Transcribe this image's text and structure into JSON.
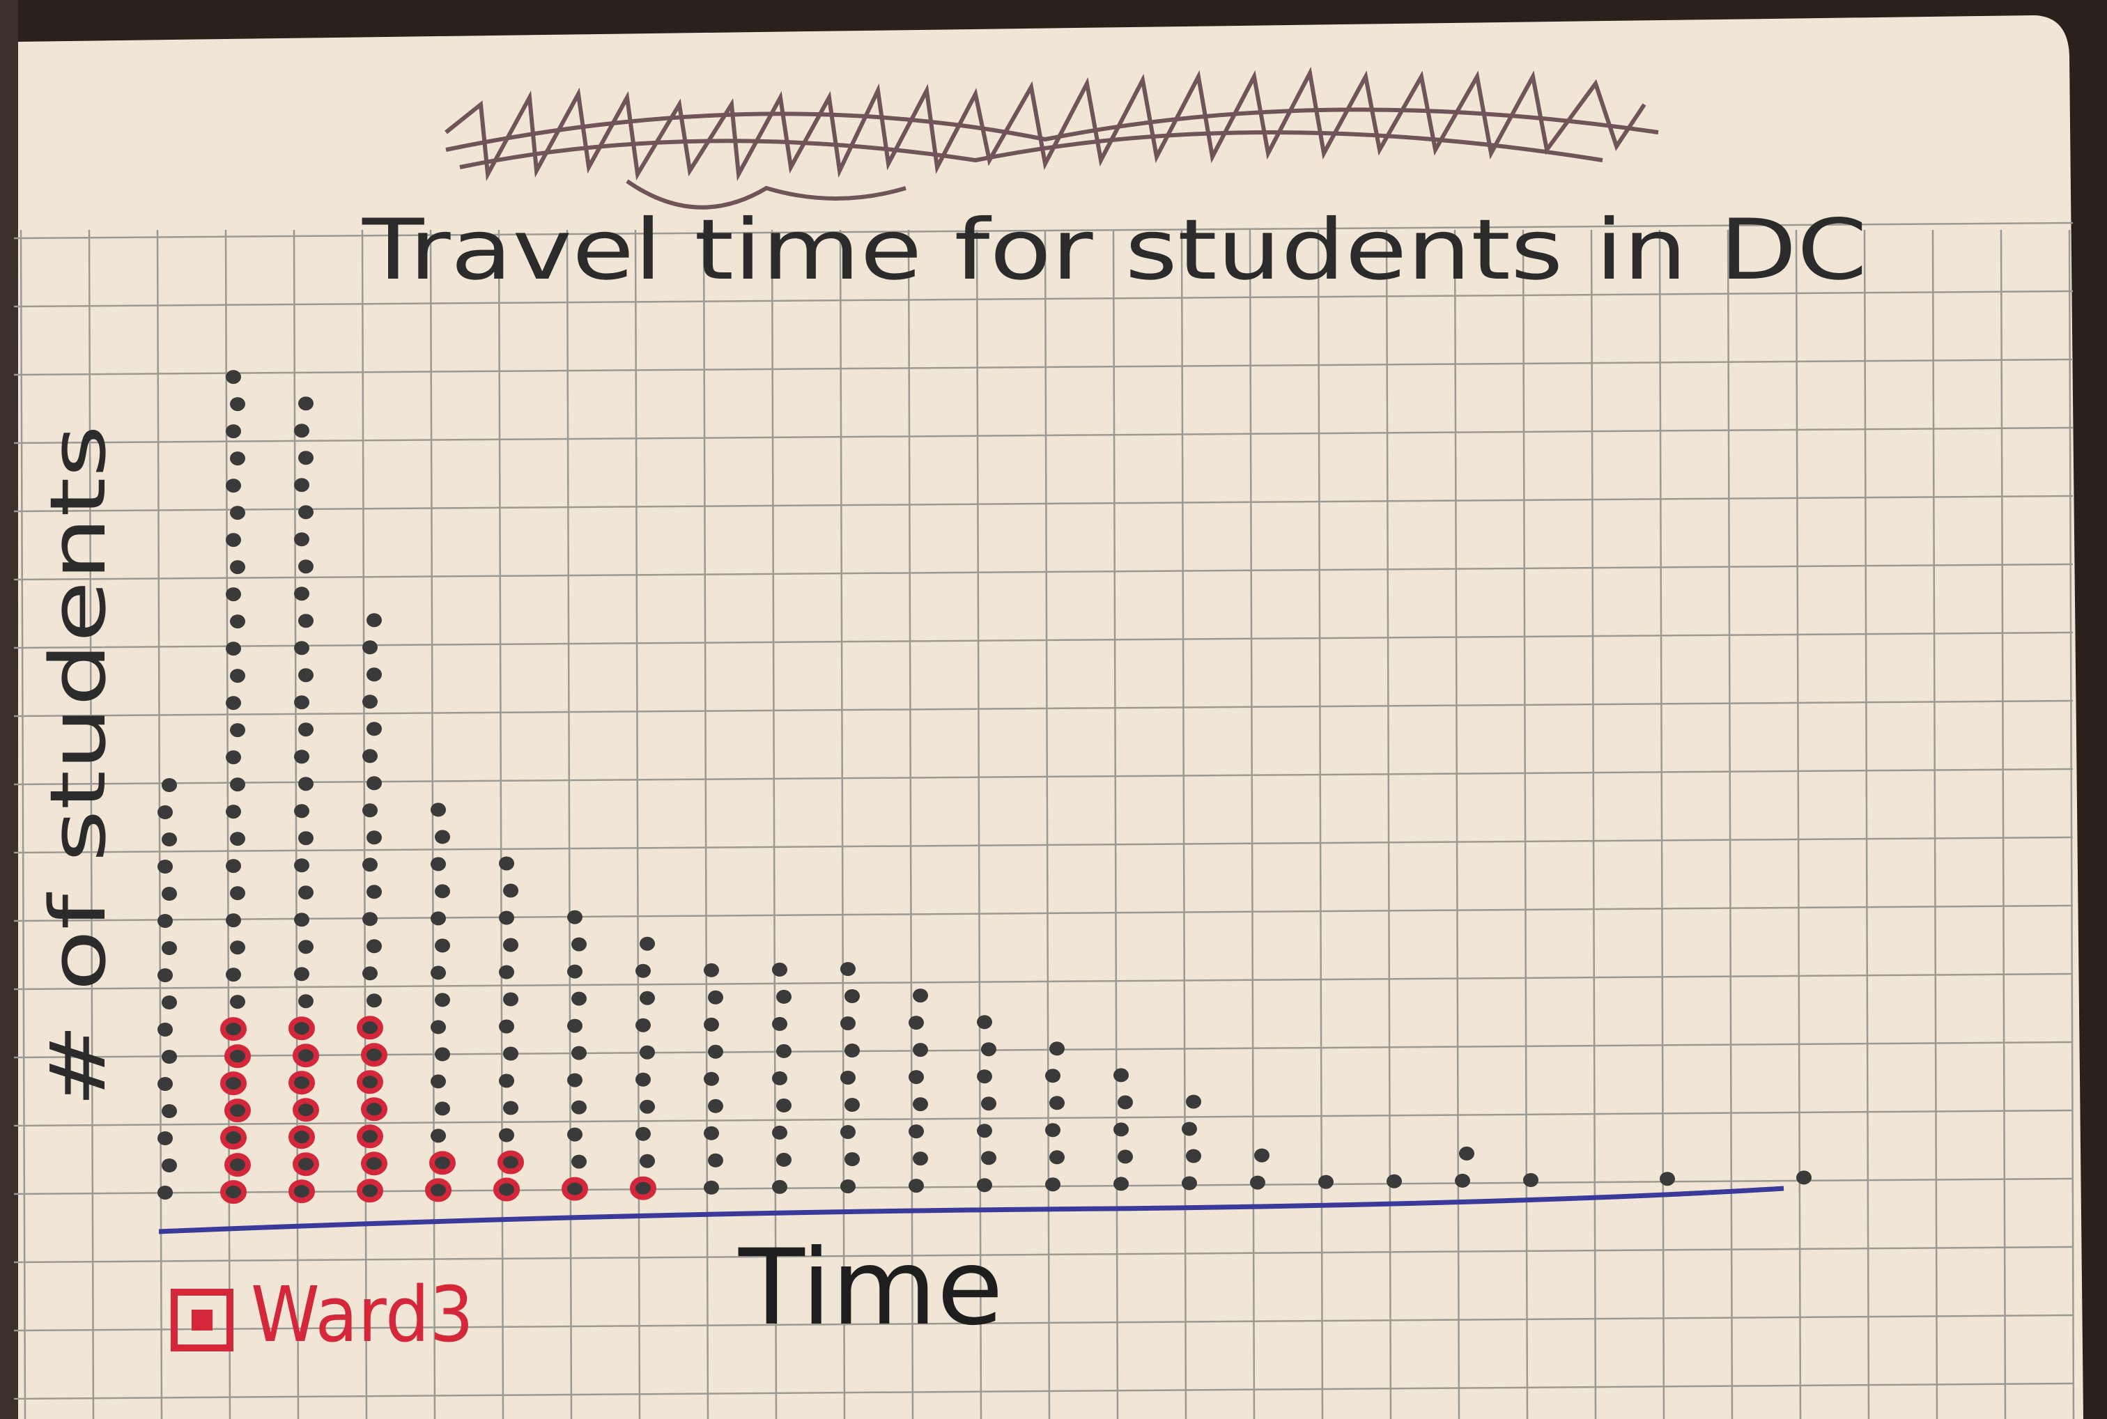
{
  "page": {
    "paper_color": "#f1e6d6",
    "grid_color": "#9a9a94",
    "desk_color": "#2a211d"
  },
  "chart_data": {
    "type": "scatter",
    "style": "dot-plot",
    "title": "Travel time for students in DC",
    "struck_out_title": "",
    "xlabel": "Time",
    "ylabel": "# of students",
    "grid": true,
    "legend": {
      "position": "bottom-left",
      "label": "Ward3",
      "color": "#d4283a"
    },
    "x_axis_color": "#3a3a9a",
    "dot_color_default": "#3a3a3a",
    "dot_color_highlight": "#d4283a",
    "x_ticks": [],
    "columns": [
      {
        "x": 1,
        "count": 16,
        "highlight": 0
      },
      {
        "x": 2,
        "count": 31,
        "highlight": 7
      },
      {
        "x": 3,
        "count": 30,
        "highlight": 7
      },
      {
        "x": 4,
        "count": 22,
        "highlight": 7
      },
      {
        "x": 5,
        "count": 15,
        "highlight": 2
      },
      {
        "x": 6,
        "count": 13,
        "highlight": 2
      },
      {
        "x": 7,
        "count": 11,
        "highlight": 1
      },
      {
        "x": 8,
        "count": 10,
        "highlight": 1
      },
      {
        "x": 9,
        "count": 9,
        "highlight": 0
      },
      {
        "x": 10,
        "count": 9,
        "highlight": 0
      },
      {
        "x": 11,
        "count": 9,
        "highlight": 0
      },
      {
        "x": 12,
        "count": 8,
        "highlight": 0
      },
      {
        "x": 13,
        "count": 7,
        "highlight": 0
      },
      {
        "x": 14,
        "count": 6,
        "highlight": 0
      },
      {
        "x": 15,
        "count": 5,
        "highlight": 0
      },
      {
        "x": 16,
        "count": 4,
        "highlight": 0
      },
      {
        "x": 17,
        "count": 2,
        "highlight": 0
      },
      {
        "x": 18,
        "count": 1,
        "highlight": 0
      },
      {
        "x": 19,
        "count": 1,
        "highlight": 0
      },
      {
        "x": 20,
        "count": 2,
        "highlight": 0
      },
      {
        "x": 21,
        "count": 1,
        "highlight": 0
      },
      {
        "x": 22,
        "count": 0,
        "highlight": 0
      },
      {
        "x": 23,
        "count": 1,
        "highlight": 0
      },
      {
        "x": 24,
        "count": 0,
        "highlight": 0
      },
      {
        "x": 25,
        "count": 1,
        "highlight": 0
      }
    ]
  }
}
